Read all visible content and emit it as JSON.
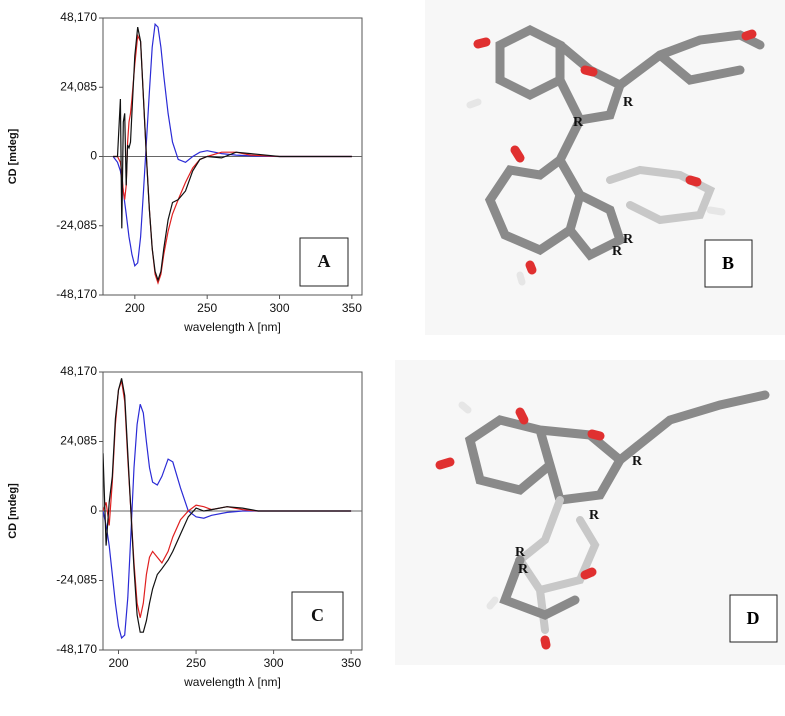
{
  "chart_data": [
    {
      "type": "line",
      "xlabel": "wavelength λ [nm]",
      "ylabel": "CD [mdeg]",
      "annotation": "A",
      "x": [
        185,
        188,
        190,
        191,
        192,
        193,
        194,
        195,
        196,
        197,
        198,
        200,
        202,
        204,
        206,
        208,
        210,
        212,
        214,
        216,
        218,
        220,
        223,
        226,
        230,
        235,
        240,
        245,
        250,
        260,
        270,
        280,
        300,
        320,
        350
      ],
      "series": [
        {
          "color": "#2b2bd6",
          "values": [
            0,
            -2000,
            -5000,
            -8000,
            -12000,
            -16000,
            -20000,
            -24000,
            -28000,
            -31000,
            -34000,
            -38000,
            -37000,
            -28000,
            -12000,
            5000,
            22000,
            38000,
            46000,
            45000,
            38000,
            28000,
            15000,
            5000,
            -1000,
            -2000,
            0,
            1500,
            2000,
            1000,
            500,
            200,
            0,
            0,
            0
          ]
        },
        {
          "color": "#e02020",
          "values": [
            0,
            0,
            -2000,
            -6000,
            -12000,
            -15000,
            -10000,
            5000,
            12000,
            15000,
            20000,
            32000,
            42000,
            40000,
            20000,
            0,
            -18000,
            -32000,
            -41000,
            -44000,
            -41000,
            -34000,
            -26000,
            -20000,
            -15000,
            -9000,
            -4000,
            -1000,
            0,
            1500,
            1500,
            500,
            0,
            0,
            0
          ]
        },
        {
          "color": "#111111",
          "values": [
            0,
            0,
            20000,
            -25000,
            12000,
            15000,
            -10000,
            4000,
            3000,
            5000,
            15000,
            35000,
            45000,
            40000,
            20000,
            0,
            -18000,
            -32000,
            -40000,
            -43000,
            -40000,
            -32000,
            -22000,
            -16000,
            -15000,
            -12000,
            -5000,
            -1000,
            0,
            -500,
            1500,
            1000,
            0,
            0,
            0
          ]
        }
      ],
      "xlim": [
        178,
        357
      ],
      "xticks": [
        200,
        250,
        300,
        350
      ],
      "ylim": [
        -48170,
        48170
      ],
      "yticks": [
        {
          "value": 48170,
          "label": "48,170"
        },
        {
          "value": 24085,
          "label": "24,085"
        },
        0,
        {
          "value": -24085,
          "label": "-24,085"
        },
        {
          "value": -48170,
          "label": "-48,170"
        }
      ],
      "zero_line": true
    },
    {
      "type": "line",
      "xlabel": "wavelength λ [nm]",
      "ylabel": "CD [mdeg]",
      "annotation": "C",
      "x": [
        190,
        192,
        194,
        196,
        198,
        200,
        202,
        204,
        206,
        208,
        210,
        212,
        214,
        216,
        218,
        220,
        222,
        225,
        228,
        232,
        235,
        240,
        245,
        250,
        255,
        260,
        270,
        280,
        290,
        300,
        320,
        350
      ],
      "series": [
        {
          "color": "#2b2bd6",
          "values": [
            0,
            -5000,
            -12000,
            -22000,
            -32000,
            -40000,
            -44000,
            -43000,
            -30000,
            -8000,
            15000,
            30000,
            37000,
            34000,
            24000,
            15000,
            10000,
            9000,
            12000,
            18000,
            17000,
            8000,
            0,
            -2000,
            -2500,
            -1500,
            -500,
            0,
            0,
            0,
            0,
            0
          ]
        },
        {
          "color": "#e02020",
          "values": [
            0,
            3000,
            -5000,
            10000,
            30000,
            42000,
            45000,
            38000,
            18000,
            0,
            -18000,
            -32000,
            -37000,
            -32000,
            -22000,
            -16000,
            -14000,
            -16000,
            -18000,
            -14000,
            -9000,
            -3000,
            0,
            2000,
            1500,
            500,
            1500,
            500,
            0,
            0,
            0,
            0
          ]
        },
        {
          "color": "#111111",
          "values": [
            20000,
            -12000,
            3000,
            12000,
            32000,
            42000,
            46000,
            40000,
            20000,
            0,
            -20000,
            -36000,
            -42000,
            -42000,
            -38000,
            -32000,
            -27000,
            -22000,
            -20000,
            -17000,
            -14000,
            -8000,
            -2000,
            1000,
            0,
            500,
            1500,
            1000,
            0,
            0,
            0,
            0
          ]
        }
      ],
      "xlim": [
        190,
        357
      ],
      "xticks": [
        200,
        250,
        300,
        350
      ],
      "ylim": [
        -48170,
        48170
      ],
      "yticks": [
        {
          "value": 48170,
          "label": "48,170"
        },
        {
          "value": 24085,
          "label": "24,085"
        },
        0,
        {
          "value": -24085,
          "label": "-24,085"
        },
        {
          "value": -48170,
          "label": "-48,170"
        }
      ],
      "zero_line": true
    }
  ],
  "panels": [
    {
      "label": "B",
      "stereo_labels": [
        "R",
        "R",
        "R",
        "R"
      ]
    },
    {
      "label": "D",
      "stereo_labels": [
        "R",
        "R",
        "R",
        "R"
      ]
    }
  ]
}
